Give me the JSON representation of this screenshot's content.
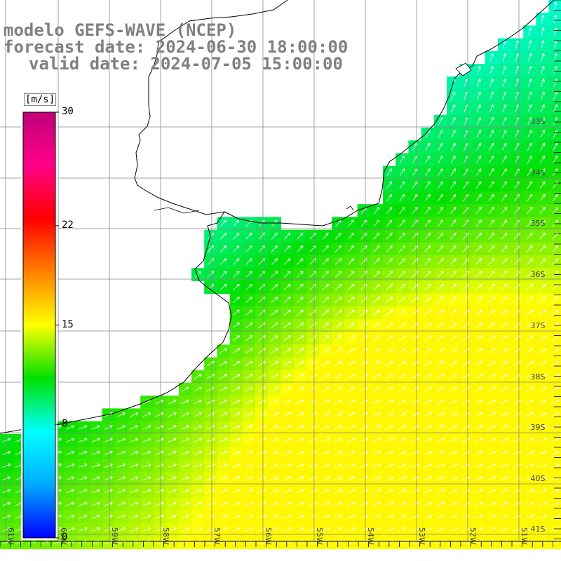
{
  "titles": {
    "line1": "modelo GEFS-WAVE (NCEP)",
    "line2": "forecast date: 2024-06-30 18:00:00",
    "line3": "valid date: 2024-07-05 15:00:00"
  },
  "colorbar": {
    "unit": "[m/s]",
    "min": 0,
    "max": 30,
    "ticks": [
      {
        "value": 30,
        "label": "30"
      },
      {
        "value": 22,
        "label": "22"
      },
      {
        "value": 15,
        "label": "15"
      },
      {
        "value": 8,
        "label": "8"
      },
      {
        "value": 0,
        "label": "0"
      }
    ],
    "colors": [
      "#0000ff",
      "#00aaff",
      "#00ffff",
      "#00e000",
      "#ffff00",
      "#ff8000",
      "#ff0000",
      "#ff0088",
      "#c0007a"
    ]
  },
  "lat_labels": [
    "33S",
    "34S",
    "35S",
    "36S",
    "37S",
    "38S",
    "39S",
    "40S",
    "41S"
  ],
  "lon_labels": [
    "61W",
    "60W",
    "59W",
    "58W",
    "57W",
    "56W",
    "55W",
    "54W",
    "53W",
    "52W",
    "51W"
  ],
  "colors": {
    "land": "#ffffff",
    "coastline": "#000000",
    "grid": "#888888",
    "arrows": "#ffffff",
    "title_text": "#808080"
  }
}
